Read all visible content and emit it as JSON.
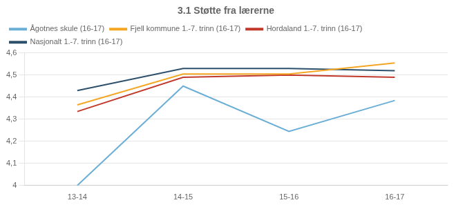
{
  "chart_data": {
    "type": "line",
    "title": "3.1 Støtte fra lærerne",
    "categories": [
      "13-14",
      "14-15",
      "15-16",
      "16-17"
    ],
    "series": [
      {
        "name": "Ågotnes skule (16-17)",
        "color": "#6baed6",
        "values": [
          4.0,
          4.45,
          4.245,
          4.385
        ]
      },
      {
        "name": "Fjell kommune 1.-7. trinn\n(16-17)",
        "color": "#f5a623",
        "values": [
          4.365,
          4.505,
          4.505,
          4.555
        ]
      },
      {
        "name": "Hordaland 1.-7. trinn (16-17)",
        "color": "#c0392b",
        "values": [
          4.335,
          4.49,
          4.5,
          4.49
        ]
      },
      {
        "name": "Nasjonalt 1.-7. trinn (16-17)",
        "color": "#2c4f6b",
        "values": [
          4.43,
          4.53,
          4.53,
          4.52
        ]
      }
    ],
    "ylim": [
      4.0,
      4.6
    ],
    "yticks": [
      {
        "value": 4.0,
        "label": "4"
      },
      {
        "value": 4.1,
        "label": "4,1"
      },
      {
        "value": 4.2,
        "label": "4,2"
      },
      {
        "value": 4.3,
        "label": "4,3"
      },
      {
        "value": 4.4,
        "label": "4,4"
      },
      {
        "value": 4.5,
        "label": "4,5"
      },
      {
        "value": 4.6,
        "label": "4,6"
      }
    ],
    "grid": "y",
    "legend": "upper left"
  }
}
